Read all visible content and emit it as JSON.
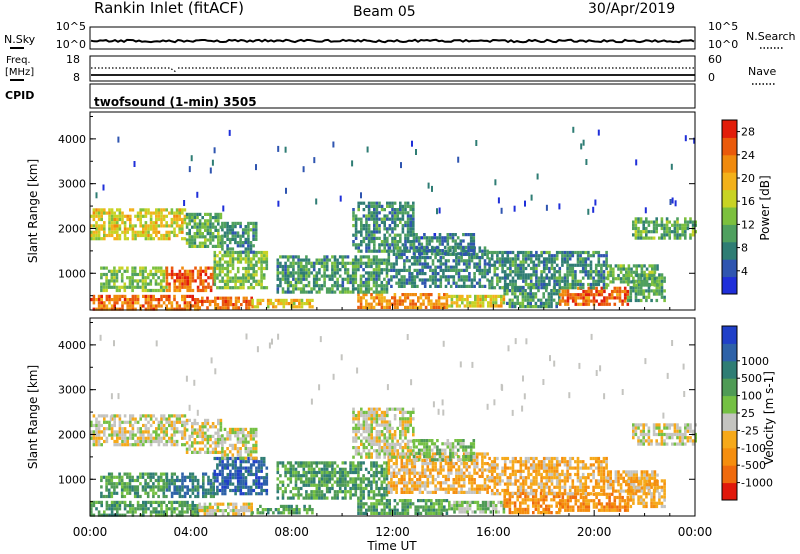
{
  "header": {
    "station": "Rankin Inlet (fitACF)",
    "beam": "Beam 05",
    "date": "30/Apr/2019"
  },
  "top_panels": {
    "nsky_label": "N.Sky",
    "nsky_ticks": [
      "10^5",
      "10^0"
    ],
    "nsearch_label": "N.Search",
    "freq_label_line1": "Freq.",
    "freq_label_line2": "[MHz]",
    "freq_ticks": [
      "18",
      "8"
    ],
    "nave_label": "Nave",
    "nave_ticks": [
      "60",
      "0"
    ],
    "cpid_label": "CPID",
    "cpid_text": "twofsound (1-min) 3505"
  },
  "colors": {
    "power": [
      "#1f2fd9",
      "#2f55b0",
      "#2f7d74",
      "#4fa05f",
      "#7cc03e",
      "#c8d324",
      "#f3b11a",
      "#f08a0d",
      "#ea5a0b",
      "#e21d0a"
    ],
    "velocity": [
      "#2040c8",
      "#2e62a8",
      "#2f7d74",
      "#4f9b55",
      "#74c043",
      "#c4c4c0",
      "#f6a91a",
      "#f58e0e",
      "#ef6a0d",
      "#e0180b"
    ]
  },
  "chart_data": [
    {
      "type": "heatmap",
      "name": "power",
      "xlabel": "",
      "ylabel": "Slant Range [km]",
      "xlim": [
        0,
        24
      ],
      "ylim": [
        180,
        4600
      ],
      "y_ticks": [
        1000,
        2000,
        3000,
        4000
      ],
      "colorbar_label": "Power [dB]",
      "colorbar_ticks": [
        "4",
        "8",
        "12",
        "16",
        "20",
        "24",
        "28"
      ],
      "colorbar_range": [
        0,
        30
      ],
      "bands": [
        {
          "t0": 0.0,
          "t1": 4.3,
          "r0": 230,
          "r1": 520,
          "level": 25
        },
        {
          "t0": 4.3,
          "t1": 6.4,
          "r0": 230,
          "r1": 480,
          "level": 26
        },
        {
          "t0": 6.4,
          "t1": 8.8,
          "r0": 230,
          "r1": 430,
          "level": 18
        },
        {
          "t0": 10.6,
          "t1": 14.2,
          "r0": 260,
          "r1": 560,
          "level": 23
        },
        {
          "t0": 14.2,
          "t1": 16.4,
          "r0": 250,
          "r1": 520,
          "level": 18
        },
        {
          "t0": 16.4,
          "t1": 18.6,
          "r0": 260,
          "r1": 720,
          "level": 9
        },
        {
          "t0": 18.6,
          "t1": 21.3,
          "r0": 320,
          "r1": 700,
          "level": 26
        },
        {
          "t0": 21.3,
          "t1": 22.8,
          "r0": 400,
          "r1": 1000,
          "level": 10
        },
        {
          "t0": 0.4,
          "t1": 3.0,
          "r0": 600,
          "r1": 1150,
          "level": 13
        },
        {
          "t0": 3.0,
          "t1": 4.9,
          "r0": 600,
          "r1": 1150,
          "level": 26
        },
        {
          "t0": 4.9,
          "t1": 7.0,
          "r0": 650,
          "r1": 1500,
          "level": 13
        },
        {
          "t0": 7.4,
          "t1": 11.8,
          "r0": 600,
          "r1": 1400,
          "level": 9
        },
        {
          "t0": 11.8,
          "t1": 15.8,
          "r0": 700,
          "r1": 1600,
          "level": 7
        },
        {
          "t0": 15.8,
          "t1": 20.5,
          "r0": 700,
          "r1": 1500,
          "level": 8
        },
        {
          "t0": 20.5,
          "t1": 22.5,
          "r0": 700,
          "r1": 1200,
          "level": 11
        },
        {
          "t0": 0.0,
          "t1": 3.8,
          "r0": 1800,
          "r1": 2450,
          "level": 18
        },
        {
          "t0": 3.8,
          "t1": 5.2,
          "r0": 1600,
          "r1": 2350,
          "level": 11
        },
        {
          "t0": 5.2,
          "t1": 6.6,
          "r0": 1500,
          "r1": 2150,
          "level": 8
        },
        {
          "t0": 10.4,
          "t1": 12.8,
          "r0": 1500,
          "r1": 2600,
          "level": 8
        },
        {
          "t0": 12.8,
          "t1": 15.2,
          "r0": 1400,
          "r1": 1900,
          "level": 6
        },
        {
          "t0": 21.5,
          "t1": 24.0,
          "r0": 1800,
          "r1": 2250,
          "level": 11
        }
      ]
    },
    {
      "type": "heatmap",
      "name": "velocity",
      "xlabel": "Time UT",
      "ylabel": "Slant Range [km]",
      "xlim": [
        0,
        24
      ],
      "ylim": [
        180,
        4600
      ],
      "x_tick_labels": [
        "00:00",
        "04:00",
        "08:00",
        "12:00",
        "16:00",
        "20:00",
        "00:00"
      ],
      "y_ticks": [
        1000,
        2000,
        3000,
        4000
      ],
      "colorbar_label": "Velocity [m s-1]",
      "colorbar_ticks": [
        "1000",
        "500",
        "100",
        "25",
        "-25",
        "-100",
        "-500",
        "-1000"
      ],
      "bands": [
        {
          "t0": 0.0,
          "t1": 4.3,
          "r0": 230,
          "r1": 520,
          "level": 3
        },
        {
          "t0": 4.3,
          "t1": 6.4,
          "r0": 230,
          "r1": 480,
          "level": 5
        },
        {
          "t0": 6.4,
          "t1": 8.8,
          "r0": 230,
          "r1": 430,
          "level": 3
        },
        {
          "t0": 10.6,
          "t1": 14.2,
          "r0": 260,
          "r1": 560,
          "level": 3
        },
        {
          "t0": 14.2,
          "t1": 16.4,
          "r0": 250,
          "r1": 520,
          "level": 4
        },
        {
          "t0": 16.4,
          "t1": 18.6,
          "r0": 260,
          "r1": 720,
          "level": 7
        },
        {
          "t0": 18.6,
          "t1": 21.3,
          "r0": 320,
          "r1": 700,
          "level": 7
        },
        {
          "t0": 21.3,
          "t1": 22.8,
          "r0": 400,
          "r1": 1000,
          "level": 6
        },
        {
          "t0": 0.4,
          "t1": 3.0,
          "r0": 600,
          "r1": 1150,
          "level": 3
        },
        {
          "t0": 3.0,
          "t1": 4.9,
          "r0": 600,
          "r1": 1150,
          "level": 2
        },
        {
          "t0": 4.9,
          "t1": 7.0,
          "r0": 650,
          "r1": 1500,
          "level": 1
        },
        {
          "t0": 7.4,
          "t1": 11.8,
          "r0": 600,
          "r1": 1400,
          "level": 3
        },
        {
          "t0": 11.8,
          "t1": 15.8,
          "r0": 700,
          "r1": 1600,
          "level": 6
        },
        {
          "t0": 15.8,
          "t1": 20.5,
          "r0": 700,
          "r1": 1500,
          "level": 6
        },
        {
          "t0": 20.5,
          "t1": 22.5,
          "r0": 700,
          "r1": 1200,
          "level": 6
        },
        {
          "t0": 0.0,
          "t1": 3.8,
          "r0": 1800,
          "r1": 2450,
          "level": 5
        },
        {
          "t0": 3.8,
          "t1": 5.2,
          "r0": 1600,
          "r1": 2350,
          "level": 5
        },
        {
          "t0": 5.2,
          "t1": 6.6,
          "r0": 1500,
          "r1": 2150,
          "level": 5
        },
        {
          "t0": 10.4,
          "t1": 12.8,
          "r0": 1500,
          "r1": 2600,
          "level": 5
        },
        {
          "t0": 12.8,
          "t1": 15.2,
          "r0": 1400,
          "r1": 1900,
          "level": 4
        },
        {
          "t0": 21.5,
          "t1": 24.0,
          "r0": 1800,
          "r1": 2250,
          "level": 5
        }
      ]
    }
  ]
}
